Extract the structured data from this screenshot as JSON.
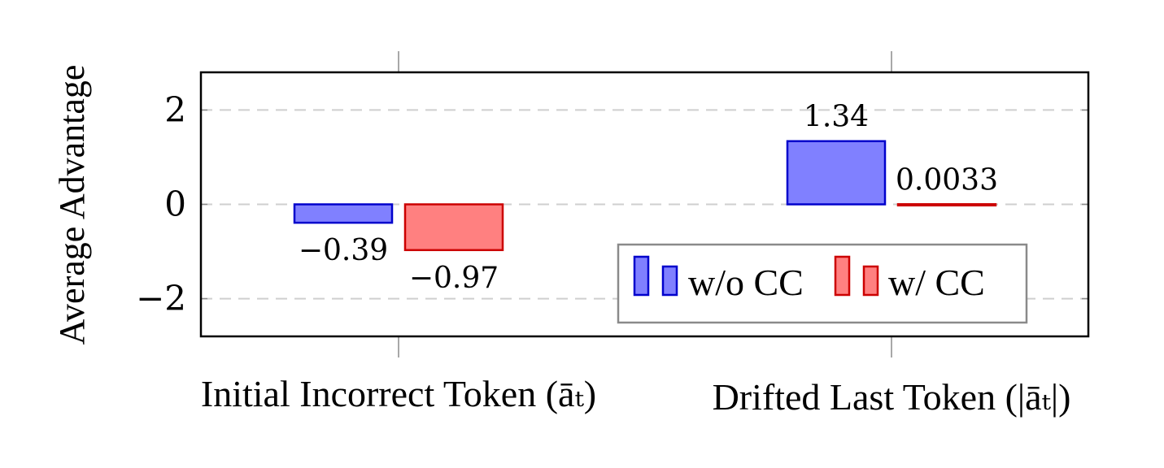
{
  "chart_data": {
    "type": "bar",
    "categories": [
      "Initial Incorrect Token (āₜ)",
      "Drifted Last Token (|āₜ|)"
    ],
    "series": [
      {
        "name": "w/o CC",
        "values": [
          -0.39,
          1.34
        ],
        "labels": [
          "−0.39",
          "1.34"
        ],
        "fill": "#8080ff",
        "stroke": "#0000cc"
      },
      {
        "name": "w/ CC",
        "values": [
          -0.97,
          0.0033
        ],
        "labels": [
          "−0.97",
          "0.0033"
        ],
        "fill": "#ff8080",
        "stroke": "#cc0000"
      }
    ],
    "ylabel": "Average Advantage",
    "xlabel": "",
    "ylim": [
      -2.8,
      2.8
    ],
    "yticks": [
      -2,
      0,
      2
    ],
    "ytick_labels": [
      "−2",
      "0",
      "2"
    ],
    "grid": "y-dashed",
    "legend": {
      "placement": "bottom-right",
      "columns": 2
    }
  }
}
